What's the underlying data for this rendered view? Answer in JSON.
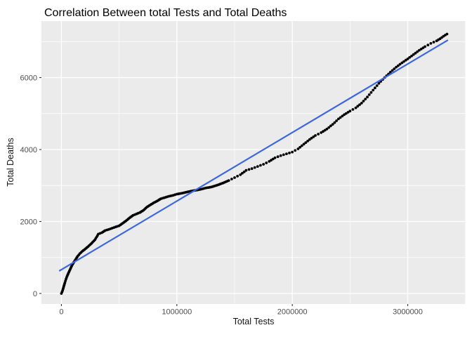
{
  "chart_data": {
    "type": "scatter",
    "title": "Correlation Between total Tests and Total Deaths",
    "xlabel": "Total Tests",
    "ylabel": "Total Deaths",
    "grid": "major-and-minor",
    "legend_position": "none",
    "xlim": [
      -173000,
      3502000
    ],
    "ylim": [
      -293,
      7571
    ],
    "x_ticks": [
      {
        "value": 0,
        "label": "0"
      },
      {
        "value": 1000000,
        "label": "1000000"
      },
      {
        "value": 2000000,
        "label": "2000000"
      },
      {
        "value": 3000000,
        "label": "3000000"
      }
    ],
    "y_ticks": [
      {
        "value": 0,
        "label": "0"
      },
      {
        "value": 2000,
        "label": "2000"
      },
      {
        "value": 4000,
        "label": "4000"
      },
      {
        "value": 6000,
        "label": "6000"
      }
    ],
    "x_minor": [
      500000,
      1500000,
      2500000,
      3500000
    ],
    "y_minor": [
      1000,
      3000,
      5000,
      7000
    ],
    "colors": {
      "panel": "#EBEBEB",
      "grid": "#FFFFFF",
      "tick_label": "#4D4D4D",
      "tick_mark": "#333333",
      "title": "#000000",
      "points": "#000000",
      "trend": "#3B66E6"
    },
    "series": [
      {
        "name": "cumulative-observations",
        "type": "points",
        "color": "#000000",
        "points": [
          [
            0,
            0
          ],
          [
            10000,
            80
          ],
          [
            20000,
            190
          ],
          [
            30000,
            300
          ],
          [
            40000,
            400
          ],
          [
            50000,
            490
          ],
          [
            60000,
            560
          ],
          [
            70000,
            630
          ],
          [
            80000,
            700
          ],
          [
            90000,
            770
          ],
          [
            100000,
            830
          ],
          [
            120000,
            930
          ],
          [
            140000,
            1030
          ],
          [
            160000,
            1110
          ],
          [
            180000,
            1170
          ],
          [
            200000,
            1220
          ],
          [
            230000,
            1300
          ],
          [
            260000,
            1390
          ],
          [
            290000,
            1490
          ],
          [
            320000,
            1650
          ],
          [
            350000,
            1690
          ],
          [
            380000,
            1750
          ],
          [
            410000,
            1780
          ],
          [
            440000,
            1815
          ],
          [
            470000,
            1850
          ],
          [
            500000,
            1880
          ],
          [
            530000,
            1950
          ],
          [
            560000,
            2020
          ],
          [
            590000,
            2100
          ],
          [
            620000,
            2170
          ],
          [
            650000,
            2210
          ],
          [
            680000,
            2250
          ],
          [
            710000,
            2310
          ],
          [
            740000,
            2400
          ],
          [
            770000,
            2460
          ],
          [
            800000,
            2520
          ],
          [
            830000,
            2570
          ],
          [
            860000,
            2630
          ],
          [
            890000,
            2660
          ],
          [
            930000,
            2700
          ],
          [
            970000,
            2730
          ],
          [
            1000000,
            2760
          ],
          [
            1050000,
            2790
          ],
          [
            1100000,
            2830
          ],
          [
            1150000,
            2860
          ],
          [
            1200000,
            2890
          ],
          [
            1250000,
            2930
          ],
          [
            1300000,
            2960
          ],
          [
            1350000,
            3010
          ],
          [
            1400000,
            3070
          ],
          [
            1450000,
            3140
          ],
          [
            1500000,
            3220
          ],
          [
            1550000,
            3300
          ],
          [
            1600000,
            3420
          ],
          [
            1650000,
            3470
          ],
          [
            1700000,
            3530
          ],
          [
            1750000,
            3590
          ],
          [
            1800000,
            3670
          ],
          [
            1850000,
            3770
          ],
          [
            1900000,
            3830
          ],
          [
            1950000,
            3880
          ],
          [
            2000000,
            3930
          ],
          [
            2050000,
            4020
          ],
          [
            2100000,
            4150
          ],
          [
            2150000,
            4280
          ],
          [
            2200000,
            4390
          ],
          [
            2250000,
            4470
          ],
          [
            2300000,
            4570
          ],
          [
            2350000,
            4700
          ],
          [
            2400000,
            4850
          ],
          [
            2450000,
            4970
          ],
          [
            2500000,
            5070
          ],
          [
            2550000,
            5160
          ],
          [
            2600000,
            5290
          ],
          [
            2650000,
            5460
          ],
          [
            2700000,
            5650
          ],
          [
            2750000,
            5840
          ],
          [
            2800000,
            6000
          ],
          [
            2850000,
            6150
          ],
          [
            2900000,
            6290
          ],
          [
            2950000,
            6410
          ],
          [
            3000000,
            6520
          ],
          [
            3050000,
            6640
          ],
          [
            3100000,
            6760
          ],
          [
            3150000,
            6860
          ],
          [
            3200000,
            6950
          ],
          [
            3250000,
            7020
          ],
          [
            3280000,
            7080
          ],
          [
            3310000,
            7150
          ],
          [
            3340000,
            7210
          ]
        ]
      },
      {
        "name": "linear-fit",
        "type": "line",
        "color": "#3B66E6",
        "points": [
          [
            -15000,
            634
          ],
          [
            3344000,
            7034
          ]
        ]
      }
    ]
  }
}
